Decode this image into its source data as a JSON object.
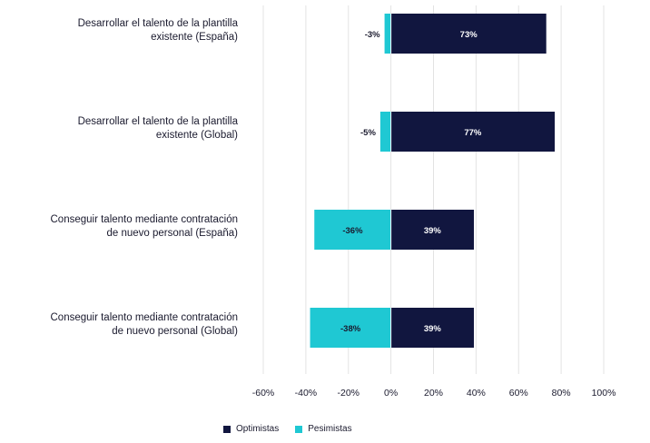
{
  "colors": {
    "optimistas": "#11163f",
    "pesimistas": "#1fc8d3",
    "grid": "#e3e3e3"
  },
  "chart_data": {
    "type": "bar",
    "orientation": "horizontal",
    "stacked": "diverging",
    "categories": [
      [
        "Desarrollar el talento de la plantilla",
        "existente (España)"
      ],
      [
        "Desarrollar el talento de la plantilla",
        "existente (Global)"
      ],
      [
        "Conseguir talento mediante contratación",
        "de nuevo personal (España)"
      ],
      [
        "Conseguir talento mediante contratación",
        "de nuevo personal (Global)"
      ]
    ],
    "series": [
      {
        "name": "Optimistas",
        "values": [
          73,
          77,
          39,
          39
        ],
        "labels": [
          "73%",
          "77%",
          "39%",
          "39%"
        ]
      },
      {
        "name": "Pesimistas",
        "values": [
          -3,
          -5,
          -36,
          -38
        ],
        "labels": [
          "-3%",
          "-5%",
          "-36%",
          "-38%"
        ]
      }
    ],
    "xlim": [
      -60,
      100
    ],
    "xticks": [
      -60,
      -40,
      -20,
      0,
      20,
      40,
      60,
      80,
      100
    ],
    "xtick_labels": [
      "-60%",
      "-40%",
      "-20%",
      "0%",
      "20%",
      "40%",
      "60%",
      "80%",
      "100%"
    ],
    "grid": true,
    "legend_position": "bottom-center"
  },
  "legend": {
    "optimistas": "Optimistas",
    "pesimistas": "Pesimistas"
  }
}
